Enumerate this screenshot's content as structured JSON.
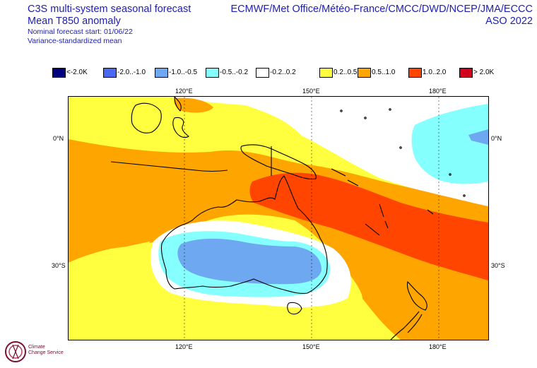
{
  "header": {
    "left": {
      "title_line1": "C3S multi-system seasonal forecast",
      "title_line2": "Mean T850 anomaly",
      "sub_line1": "Nominal forecast start: 01/06/22",
      "sub_line2": "Variance-standardized mean"
    },
    "right": {
      "systems": "ECMWF/Met Office/Météo-France/CMCC/DWD/NCEP/JMA/ECCC",
      "season": "ASO 2022"
    }
  },
  "legend": [
    {
      "label": "<-2.0K",
      "color": "#00007f"
    },
    {
      "label": "-2.0..-1.0",
      "color": "#4a68f2"
    },
    {
      "label": "-1.0..-0.5",
      "color": "#6ea8f0"
    },
    {
      "label": "-0.5..-0.2",
      "color": "#86ffff"
    },
    {
      "label": "-0.2..0.2",
      "color": "#ffffff"
    },
    {
      "label": "0.2..0.5",
      "color": "#ffff40"
    },
    {
      "label": "0.5..1.0",
      "color": "#ffa500"
    },
    {
      "label": "1.0..2.0",
      "color": "#ff4500"
    },
    {
      "label": "> 2.0K",
      "color": "#d2001e"
    }
  ],
  "axes": {
    "lon_ticks_top": [
      "120°E",
      "150°E",
      "180°E"
    ],
    "lon_ticks_bottom": [
      "120°E",
      "150°E",
      "180°E"
    ],
    "lat_ticks_left": [
      "0°N",
      "30°S"
    ],
    "lat_ticks_right": [
      "0°N",
      "30°S"
    ]
  },
  "logo": {
    "name_line1": "Climate",
    "name_line2": "Change Service"
  }
}
